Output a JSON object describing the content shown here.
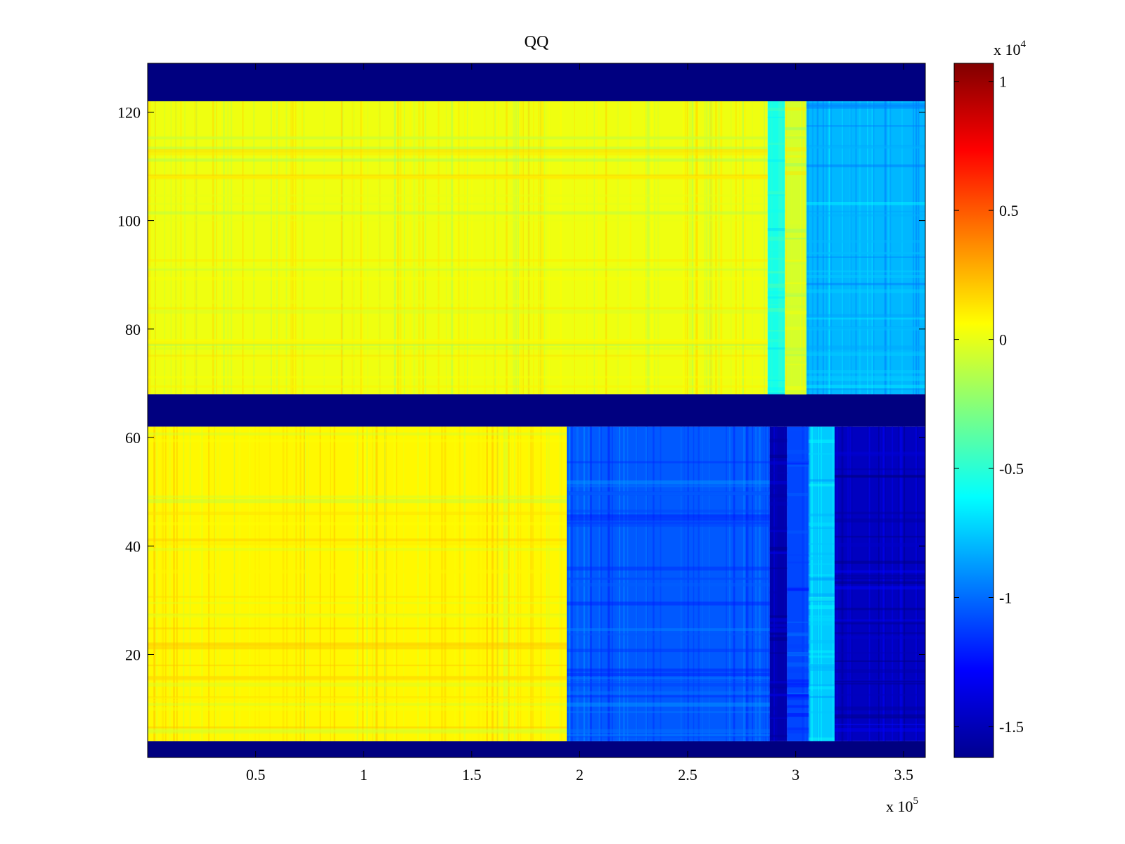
{
  "chart_data": {
    "type": "heatmap",
    "title": "QQ",
    "xlabel": "",
    "ylabel": "",
    "colormap": "jet",
    "x_range": [
      0,
      3.6
    ],
    "x_exponent_label": "x 10",
    "x_exponent": "5",
    "x_ticks": [
      {
        "value": 0.5,
        "label": "0.5"
      },
      {
        "value": 1,
        "label": "1"
      },
      {
        "value": 1.5,
        "label": "1.5"
      },
      {
        "value": 2,
        "label": "2"
      },
      {
        "value": 2.5,
        "label": "2.5"
      },
      {
        "value": 3,
        "label": "3"
      },
      {
        "value": 3.5,
        "label": "3.5"
      }
    ],
    "y_range": [
      1,
      129
    ],
    "y_ticks": [
      {
        "value": 20,
        "label": "20"
      },
      {
        "value": 40,
        "label": "40"
      },
      {
        "value": 60,
        "label": "60"
      },
      {
        "value": 80,
        "label": "80"
      },
      {
        "value": 100,
        "label": "100"
      },
      {
        "value": 120,
        "label": "120"
      }
    ],
    "colorbar": {
      "range": [
        -1.62,
        1.07
      ],
      "exponent_label": "x 10",
      "exponent": "4",
      "ticks": [
        {
          "value": 1,
          "label": "1"
        },
        {
          "value": 0.5,
          "label": "0.5"
        },
        {
          "value": 0,
          "label": "0"
        },
        {
          "value": -0.5,
          "label": "-0.5"
        },
        {
          "value": -1,
          "label": "-1"
        },
        {
          "value": -1.5,
          "label": "-1.5"
        }
      ]
    },
    "regions": [
      {
        "x": [
          0,
          3.6
        ],
        "y": [
          122,
          129
        ],
        "value": -1.62,
        "label": "top dead band"
      },
      {
        "x": [
          0,
          3.6
        ],
        "y": [
          62,
          68
        ],
        "value": -1.62,
        "label": "middle dead band"
      },
      {
        "x": [
          0,
          3.6
        ],
        "y": [
          1,
          4
        ],
        "value": -1.62,
        "label": "bottom dead band"
      },
      {
        "x": [
          0,
          2.87
        ],
        "y": [
          68,
          122
        ],
        "value": 0.02
      },
      {
        "x": [
          2.87,
          2.95
        ],
        "y": [
          68,
          122
        ],
        "value": -0.55
      },
      {
        "x": [
          2.95,
          3.05
        ],
        "y": [
          68,
          122
        ],
        "value": -0.05
      },
      {
        "x": [
          3.05,
          3.6
        ],
        "y": [
          68,
          122
        ],
        "value": -0.8
      },
      {
        "x": [
          0,
          1.94
        ],
        "y": [
          4,
          62
        ],
        "value": 0.08
      },
      {
        "x": [
          1.94,
          2.88
        ],
        "y": [
          4,
          62
        ],
        "value": -1.05
      },
      {
        "x": [
          2.88,
          2.96
        ],
        "y": [
          4,
          62
        ],
        "value": -1.5
      },
      {
        "x": [
          2.96,
          3.06
        ],
        "y": [
          4,
          62
        ],
        "value": -1.1
      },
      {
        "x": [
          3.06,
          3.18
        ],
        "y": [
          4,
          62
        ],
        "value": -0.75
      },
      {
        "x": [
          3.18,
          3.6
        ],
        "y": [
          4,
          62
        ],
        "value": -1.45
      }
    ]
  }
}
